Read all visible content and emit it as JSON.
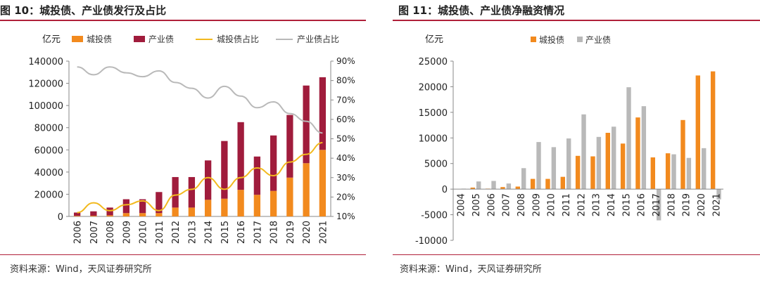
{
  "colors": {
    "orange": "#f28a1e",
    "maroon": "#a01c3c",
    "yellow": "#f2b91e",
    "gray": "#b9b9b9",
    "accent_rule": "#b0203a"
  },
  "left": {
    "title": "图 10：城投债、产业债发行及占比",
    "source": "资料来源：Wind，天风证券研究所"
  },
  "right": {
    "title": "图 11：城投债、产业债净融资情况",
    "source": "资料来源：Wind，天风证券研究所"
  },
  "chart_data": [
    {
      "type": "bar",
      "stacked": true,
      "ylabel": "亿元",
      "categories": [
        "2006",
        "2007",
        "2008",
        "2009",
        "2010",
        "2011",
        "2012",
        "2013",
        "2014",
        "2015",
        "2016",
        "2017",
        "2018",
        "2019",
        "2020",
        "2021"
      ],
      "series": [
        {
          "name": "城投债",
          "axis": "left",
          "color": "#f28a1e",
          "values": [
            500,
            600,
            1000,
            3000,
            3000,
            3000,
            8000,
            8000,
            15000,
            16000,
            24000,
            19500,
            23000,
            35000,
            48000,
            60000
          ]
        },
        {
          "name": "产业债",
          "axis": "left",
          "color": "#a01c3c",
          "values": [
            3000,
            4000,
            7000,
            12500,
            12500,
            19000,
            27500,
            27500,
            35500,
            52000,
            61000,
            34500,
            50000,
            56500,
            70000,
            65500
          ]
        },
        {
          "name": "城投债占比",
          "axis": "right",
          "type": "line",
          "color": "#f2b91e",
          "values": [
            12,
            17,
            13,
            16,
            18,
            13,
            21,
            24,
            30,
            24,
            30,
            35,
            31,
            38,
            42,
            48
          ]
        },
        {
          "name": "产业债占比",
          "axis": "right",
          "type": "line",
          "color": "#b9b9b9",
          "values": [
            87,
            83,
            87,
            84,
            82,
            85,
            79,
            76,
            71,
            77,
            72,
            66,
            69,
            63,
            59,
            53
          ]
        }
      ],
      "yticks_left": [
        "0",
        "20000",
        "40000",
        "60000",
        "80000",
        "100000",
        "120000",
        "140000"
      ],
      "yticks_right": [
        "10%",
        "20%",
        "30%",
        "40%",
        "50%",
        "60%",
        "70%",
        "80%",
        "90%"
      ],
      "ylim": [
        0,
        140000
      ],
      "ylim_right": [
        10,
        90
      ],
      "legend": "top",
      "grid": false
    },
    {
      "type": "bar",
      "ylabel": "亿元",
      "categories": [
        "2004",
        "2005",
        "2006",
        "2007",
        "2008",
        "2009",
        "2010",
        "2011",
        "2012",
        "2013",
        "2014",
        "2015",
        "2016",
        "2017",
        "2018",
        "2019",
        "2020",
        "2021"
      ],
      "series": [
        {
          "name": "城投债",
          "color": "#f28a1e",
          "values": [
            0,
            300,
            100,
            400,
            500,
            2000,
            2000,
            2400,
            6500,
            6400,
            11000,
            8900,
            14000,
            6200,
            7000,
            13500,
            22200,
            23000
          ]
        },
        {
          "name": "产业债",
          "color": "#b9b9b9",
          "values": [
            100,
            1500,
            1600,
            1100,
            4100,
            9200,
            8200,
            9900,
            14600,
            10200,
            12200,
            19900,
            16200,
            -6100,
            6800,
            6100,
            8000,
            -2000
          ]
        }
      ],
      "yticks": [
        "-10000",
        "-5000",
        "0",
        "5000",
        "10000",
        "15000",
        "20000",
        "25000"
      ],
      "ylim": [
        -10000,
        25000
      ],
      "legend": "top",
      "grid": false
    }
  ]
}
